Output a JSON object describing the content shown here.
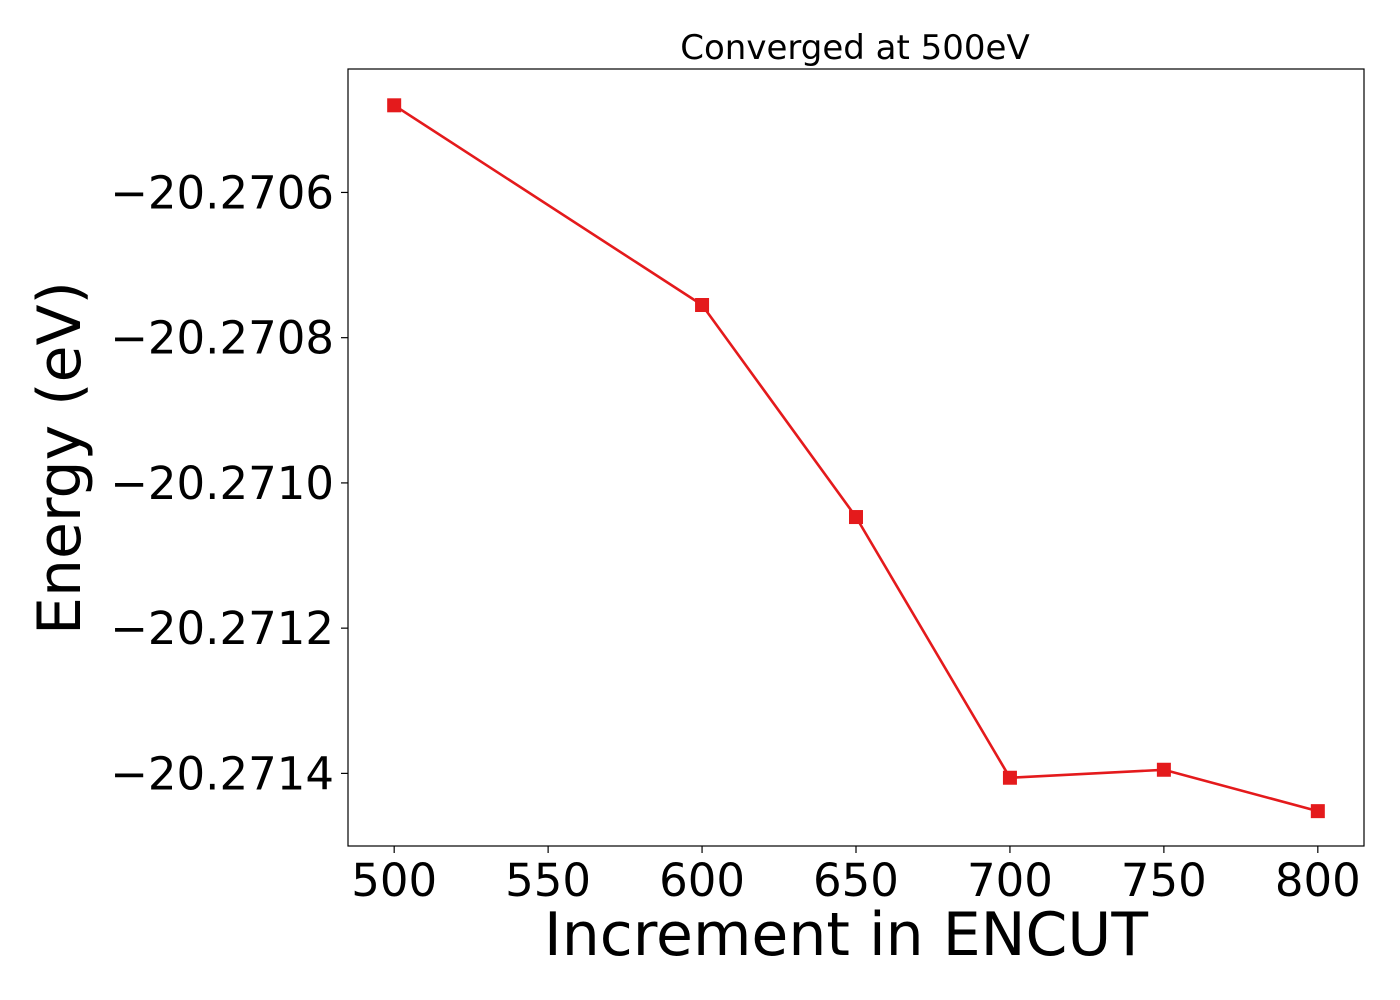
{
  "chart_data": {
    "type": "line",
    "title": "Converged at 500eV",
    "xlabel": "Increment in ENCUT",
    "ylabel": "Energy (eV)",
    "xlim": [
      485,
      815
    ],
    "ylim": [
      -20.2715,
      -20.27043
    ],
    "x_ticks": [
      500,
      550,
      600,
      650,
      700,
      750,
      800
    ],
    "x_tick_labels": [
      "500",
      "550",
      "600",
      "650",
      "700",
      "750",
      "800"
    ],
    "y_ticks": [
      -20.2706,
      -20.2708,
      -20.271,
      -20.2712,
      -20.2714
    ],
    "y_tick_labels": [
      "−20.2706",
      "−20.2708",
      "−20.2710",
      "−20.2712",
      "−20.2714"
    ],
    "grid": false,
    "series": [
      {
        "color": "#e41a1c",
        "marker": "square",
        "x": [
          500,
          600,
          650,
          700,
          750,
          800
        ],
        "y": [
          -20.27048,
          -20.270755,
          -20.271047,
          -20.271406,
          -20.271395,
          -20.271452
        ]
      }
    ]
  }
}
